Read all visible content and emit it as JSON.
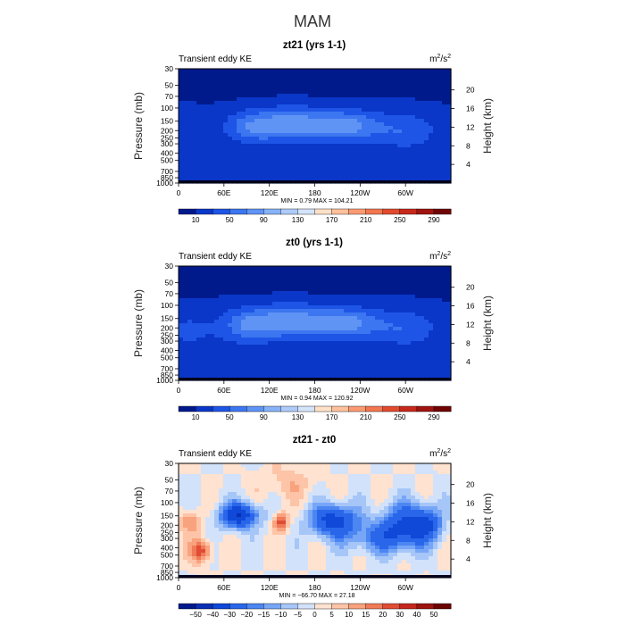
{
  "figure": {
    "title": "MAM"
  },
  "chart_data": [
    {
      "type": "heatmap",
      "title": "zt21 (yrs 1-1)",
      "left_label": "Transient eddy KE",
      "units": "m2/s2",
      "units_base": "m",
      "units_exp1": "2",
      "units_mid": "/s",
      "units_exp2": "2",
      "xticks": [
        "0",
        "60E",
        "120E",
        "180",
        "120W",
        "60W"
      ],
      "yticks": [
        "30",
        "50",
        "70",
        "100",
        "150",
        "200",
        "250",
        "300",
        "400",
        "500",
        "700",
        "850",
        "1000"
      ],
      "ylabel": "Pressure (mb)",
      "y2ticks": [
        "4",
        "8",
        "12",
        "16",
        "20"
      ],
      "y2label": "Height (km)",
      "stats": "MIN =     0.79   MAX = 104.21",
      "min": 0.79,
      "max": 104.21,
      "colorbar_labels": [
        "10",
        "50",
        "90",
        "130",
        "170",
        "210",
        "250",
        "290"
      ],
      "colorbar_colors": [
        "#001a8c",
        "#0a37c8",
        "#1e55e6",
        "#3c76f0",
        "#5f94f5",
        "#86b2f8",
        "#aecbfa",
        "#d4e4fb",
        "#ffe1c8",
        "#ffc09c",
        "#fb9a72",
        "#f2764f",
        "#e24a2e",
        "#c7281c",
        "#a0140f",
        "#700404"
      ],
      "field": "eke"
    },
    {
      "type": "heatmap",
      "title": "zt0 (yrs 1-1)",
      "left_label": "Transient eddy KE",
      "units": "m2/s2",
      "units_base": "m",
      "units_exp1": "2",
      "units_mid": "/s",
      "units_exp2": "2",
      "xticks": [
        "0",
        "60E",
        "120E",
        "180",
        "120W",
        "60W"
      ],
      "yticks": [
        "30",
        "50",
        "70",
        "100",
        "150",
        "200",
        "250",
        "300",
        "400",
        "500",
        "700",
        "850",
        "1000"
      ],
      "ylabel": "Pressure (mb)",
      "y2ticks": [
        "4",
        "8",
        "12",
        "16",
        "20"
      ],
      "y2label": "Height (km)",
      "stats": "MIN =     0.94   MAX = 120.92",
      "min": 0.94,
      "max": 120.92,
      "colorbar_labels": [
        "10",
        "50",
        "90",
        "130",
        "170",
        "210",
        "250",
        "290"
      ],
      "colorbar_colors": [
        "#001a8c",
        "#0a37c8",
        "#1e55e6",
        "#3c76f0",
        "#5f94f5",
        "#86b2f8",
        "#aecbfa",
        "#d4e4fb",
        "#ffe1c8",
        "#ffc09c",
        "#fb9a72",
        "#f2764f",
        "#e24a2e",
        "#c7281c",
        "#a0140f",
        "#700404"
      ],
      "field": "eke"
    },
    {
      "type": "heatmap",
      "title": "zt21 - zt0",
      "left_label": "Transient eddy KE",
      "units": "m2/s2",
      "units_base": "m",
      "units_exp1": "2",
      "units_mid": "/s",
      "units_exp2": "2",
      "xticks": [
        "0",
        "60E",
        "120E",
        "180",
        "120W",
        "60W"
      ],
      "yticks": [
        "30",
        "50",
        "70",
        "100",
        "150",
        "200",
        "250",
        "300",
        "400",
        "500",
        "700",
        "850",
        "1000"
      ],
      "ylabel": "Pressure (mb)",
      "y2ticks": [
        "4",
        "8",
        "12",
        "16",
        "20"
      ],
      "y2label": "Height (km)",
      "stats": "MIN = −66.70   MAX =  27.18",
      "min": -66.7,
      "max": 27.18,
      "colorbar_labels": [
        "−50",
        "−40",
        "−30",
        "−20",
        "−15",
        "−10",
        "−5",
        "0",
        "5",
        "10",
        "15",
        "20",
        "30",
        "40",
        "50"
      ],
      "colorbar_colors": [
        "#001a8c",
        "#0a2fb4",
        "#1048d8",
        "#2a66ea",
        "#4c86f2",
        "#78a6f6",
        "#a6c6f8",
        "#d2e2fa",
        "#ffe2d0",
        "#fdc4a8",
        "#f9a27e",
        "#f07a58",
        "#e04c34",
        "#c4281e",
        "#9c1410",
        "#6c0404"
      ],
      "field": "diff"
    }
  ]
}
